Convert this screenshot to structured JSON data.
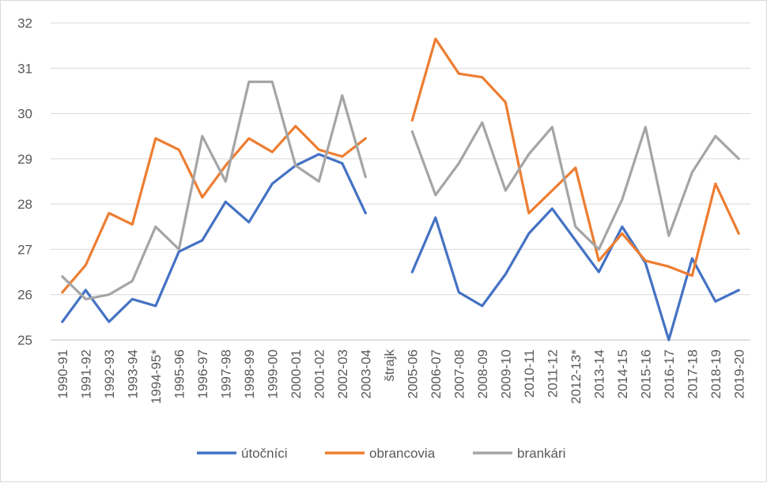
{
  "chart_data": {
    "type": "line",
    "title": "",
    "xlabel": "",
    "ylabel": "",
    "ylim": [
      25,
      32
    ],
    "y_ticks": [
      25,
      26,
      27,
      28,
      29,
      30,
      31,
      32
    ],
    "grid": "horizontal",
    "legend_position": "bottom",
    "categories": [
      "1990-91",
      "1991-92",
      "1992-93",
      "1993-94",
      "1994-95*",
      "1995-96",
      "1996-97",
      "1997-98",
      "1998-99",
      "1999-00",
      "2000-01",
      "2001-02",
      "2002-03",
      "2003-04",
      "štrajk",
      "2005-06",
      "2006-07",
      "2007-08",
      "2008-09",
      "2009-10",
      "2010-11",
      "2011-12",
      "2012-13*",
      "2013-14",
      "2014-15",
      "2015-16",
      "2016-17",
      "2017-18",
      "2018-19",
      "2019-20"
    ],
    "series": [
      {
        "name": "útočníci",
        "color": "#4472c4",
        "values": [
          25.4,
          26.1,
          25.4,
          25.9,
          25.75,
          26.95,
          27.2,
          28.05,
          27.6,
          28.45,
          28.85,
          29.1,
          28.9,
          27.8,
          null,
          26.5,
          27.7,
          26.05,
          25.75,
          26.45,
          27.35,
          27.9,
          27.2,
          26.5,
          27.5,
          26.7,
          25.0,
          26.8,
          25.85,
          26.1
        ]
      },
      {
        "name": "obrancovia",
        "color": "#ed7d31",
        "values": [
          26.05,
          26.65,
          27.8,
          27.55,
          29.45,
          29.2,
          28.15,
          28.85,
          29.45,
          29.15,
          29.72,
          29.2,
          29.05,
          29.45,
          null,
          29.85,
          31.65,
          30.88,
          30.8,
          30.25,
          27.8,
          28.3,
          28.8,
          26.75,
          27.35,
          26.75,
          26.62,
          26.42,
          28.45,
          27.35
        ]
      },
      {
        "name": "brankári",
        "color": "#a5a5a5",
        "values": [
          26.4,
          25.9,
          26.0,
          26.3,
          27.5,
          27.0,
          29.5,
          28.5,
          30.7,
          30.7,
          28.85,
          28.5,
          30.4,
          28.6,
          null,
          29.6,
          28.2,
          28.9,
          29.8,
          28.3,
          29.1,
          29.7,
          27.5,
          27.0,
          28.1,
          29.7,
          27.3,
          28.7,
          29.5,
          29.0
        ]
      }
    ]
  }
}
